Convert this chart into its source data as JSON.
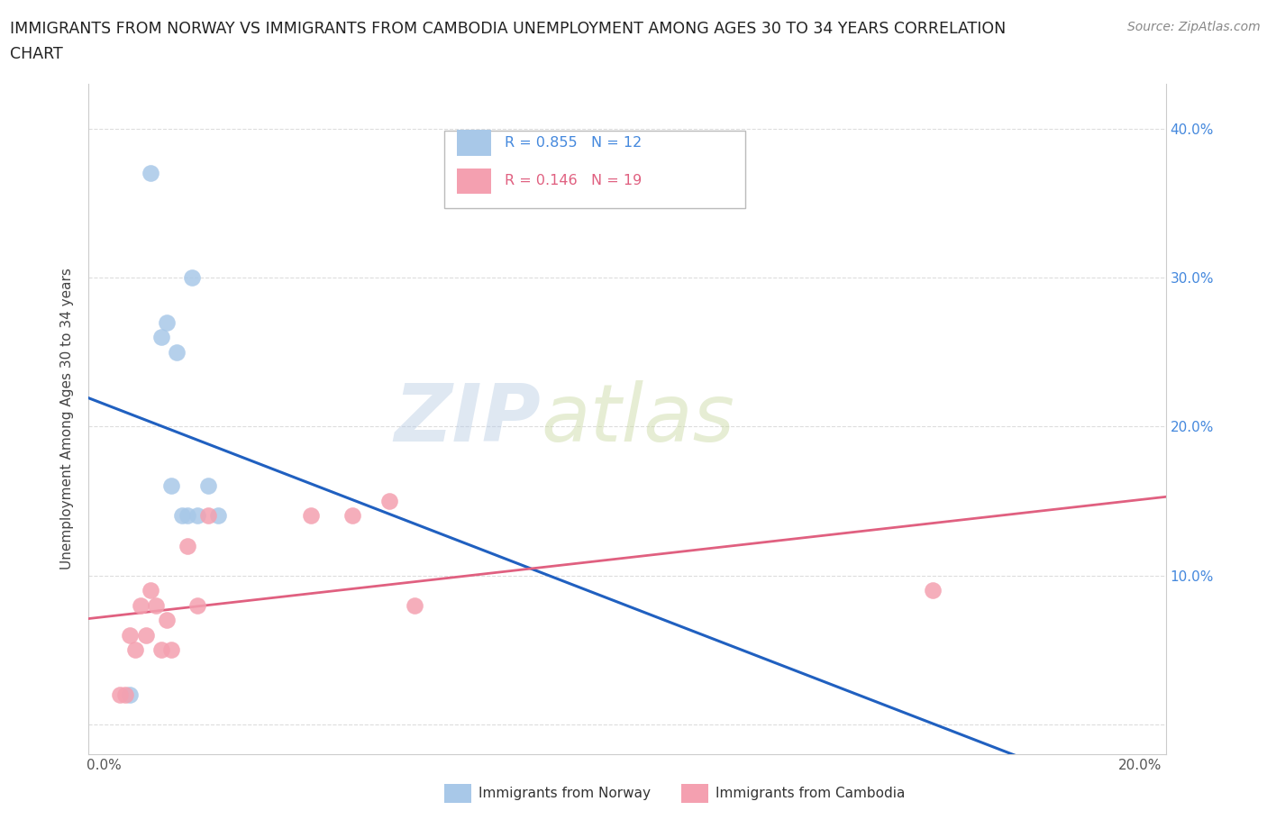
{
  "title_line1": "IMMIGRANTS FROM NORWAY VS IMMIGRANTS FROM CAMBODIA UNEMPLOYMENT AMONG AGES 30 TO 34 YEARS CORRELATION",
  "title_line2": "CHART",
  "source": "Source: ZipAtlas.com",
  "ylabel": "Unemployment Among Ages 30 to 34 years",
  "norway_color": "#a8c8e8",
  "cambodia_color": "#f4a0b0",
  "norway_line_color": "#2060c0",
  "cambodia_line_color": "#e06080",
  "norway_R": 0.855,
  "norway_N": 12,
  "cambodia_R": 0.146,
  "cambodia_N": 19,
  "norway_x": [
    0.005,
    0.009,
    0.011,
    0.012,
    0.013,
    0.014,
    0.015,
    0.016,
    0.017,
    0.018,
    0.02,
    0.022
  ],
  "norway_y": [
    0.02,
    0.37,
    0.26,
    0.27,
    0.16,
    0.25,
    0.14,
    0.14,
    0.3,
    0.14,
    0.16,
    0.14
  ],
  "cambodia_x": [
    0.003,
    0.004,
    0.005,
    0.006,
    0.007,
    0.008,
    0.009,
    0.01,
    0.011,
    0.012,
    0.013,
    0.016,
    0.018,
    0.02,
    0.04,
    0.048,
    0.055,
    0.06,
    0.16
  ],
  "cambodia_y": [
    0.02,
    0.02,
    0.06,
    0.05,
    0.08,
    0.06,
    0.09,
    0.08,
    0.05,
    0.07,
    0.05,
    0.12,
    0.08,
    0.14,
    0.14,
    0.14,
    0.15,
    0.08,
    0.09
  ],
  "ylim": [
    -0.02,
    0.43
  ],
  "xlim": [
    -0.003,
    0.205
  ],
  "yticks": [
    0.0,
    0.1,
    0.2,
    0.3,
    0.4
  ],
  "xticks": [
    0.0,
    0.04,
    0.08,
    0.12,
    0.16,
    0.2
  ],
  "right_tick_color": "#4488dd",
  "background_color": "#ffffff",
  "grid_color": "#dddddd",
  "watermark_zip": "ZIP",
  "watermark_atlas": "atlas"
}
